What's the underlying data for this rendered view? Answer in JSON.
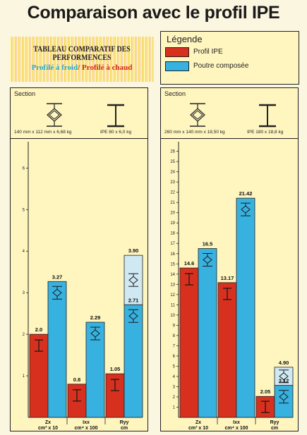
{
  "title": "Comparaison avec le profil IPE",
  "tableau": {
    "title": "TABLEAU COMPARATIF DES PERFORMENCES",
    "cold": "Profilé à froid",
    "separator": "/ ",
    "hot": "Profilé à chaud"
  },
  "legend": {
    "title": "Légende",
    "items": [
      {
        "label": "Profil IPE",
        "color": "#d8301f"
      },
      {
        "label": "Poutre composée",
        "color": "#37b2e0"
      }
    ]
  },
  "colors": {
    "ipe": "#d8301f",
    "composite": "#37b2e0",
    "composite_light": "#cfe8f2",
    "panel_bg": "#fff5bf"
  },
  "chart_data": [
    {
      "type": "bar",
      "section_label": "Section",
      "spec_left": "140 mm x 112 mm x 6,68 kg",
      "spec_right": "IPE 80 x 6,0 kg",
      "categories": [
        "Zx\ncm³ x 10",
        "Ixx\ncm⁴ x 100",
        "Ryy\ncm"
      ],
      "ylim": [
        0,
        6.6
      ],
      "yticks": [
        1,
        2,
        3,
        4,
        5,
        6
      ],
      "series": [
        {
          "name": "Profil IPE",
          "values": [
            2.0,
            0.8,
            1.05
          ],
          "labels": [
            "2.0",
            "0.8",
            "1.05"
          ]
        },
        {
          "name": "Poutre composée",
          "values": [
            3.27,
            2.29,
            2.71
          ],
          "labels": [
            "3.27",
            "2.29",
            "2.71"
          ]
        }
      ],
      "extension": {
        "category": 2,
        "value": 3.9,
        "label": "3.90"
      }
    },
    {
      "type": "bar",
      "section_label": "Section",
      "spec_left": "260 mm x 140 mm x 18,50 kg",
      "spec_right": "IPE 180 x 18,8 kg",
      "categories": [
        "Zx\ncm³ x 10",
        "Ixx\ncm⁴ x 100",
        "Ryy\ncm"
      ],
      "ylim": [
        0,
        26.8
      ],
      "yticks": [
        1,
        2,
        3,
        4,
        5,
        6,
        7,
        8,
        9,
        10,
        11,
        12,
        13,
        14,
        15,
        16,
        17,
        18,
        19,
        20,
        21,
        22,
        23,
        24,
        25,
        26
      ],
      "series": [
        {
          "name": "Profil IPE",
          "values": [
            14.6,
            13.17,
            2.05
          ],
          "labels": [
            "14.6",
            "13.17",
            "2.05"
          ]
        },
        {
          "name": "Poutre composée",
          "values": [
            16.5,
            21.42,
            3.12
          ],
          "labels": [
            "16.5",
            "21.42",
            "3.12"
          ]
        }
      ],
      "extension": {
        "category": 2,
        "value": 4.9,
        "label": "4.90"
      }
    }
  ]
}
